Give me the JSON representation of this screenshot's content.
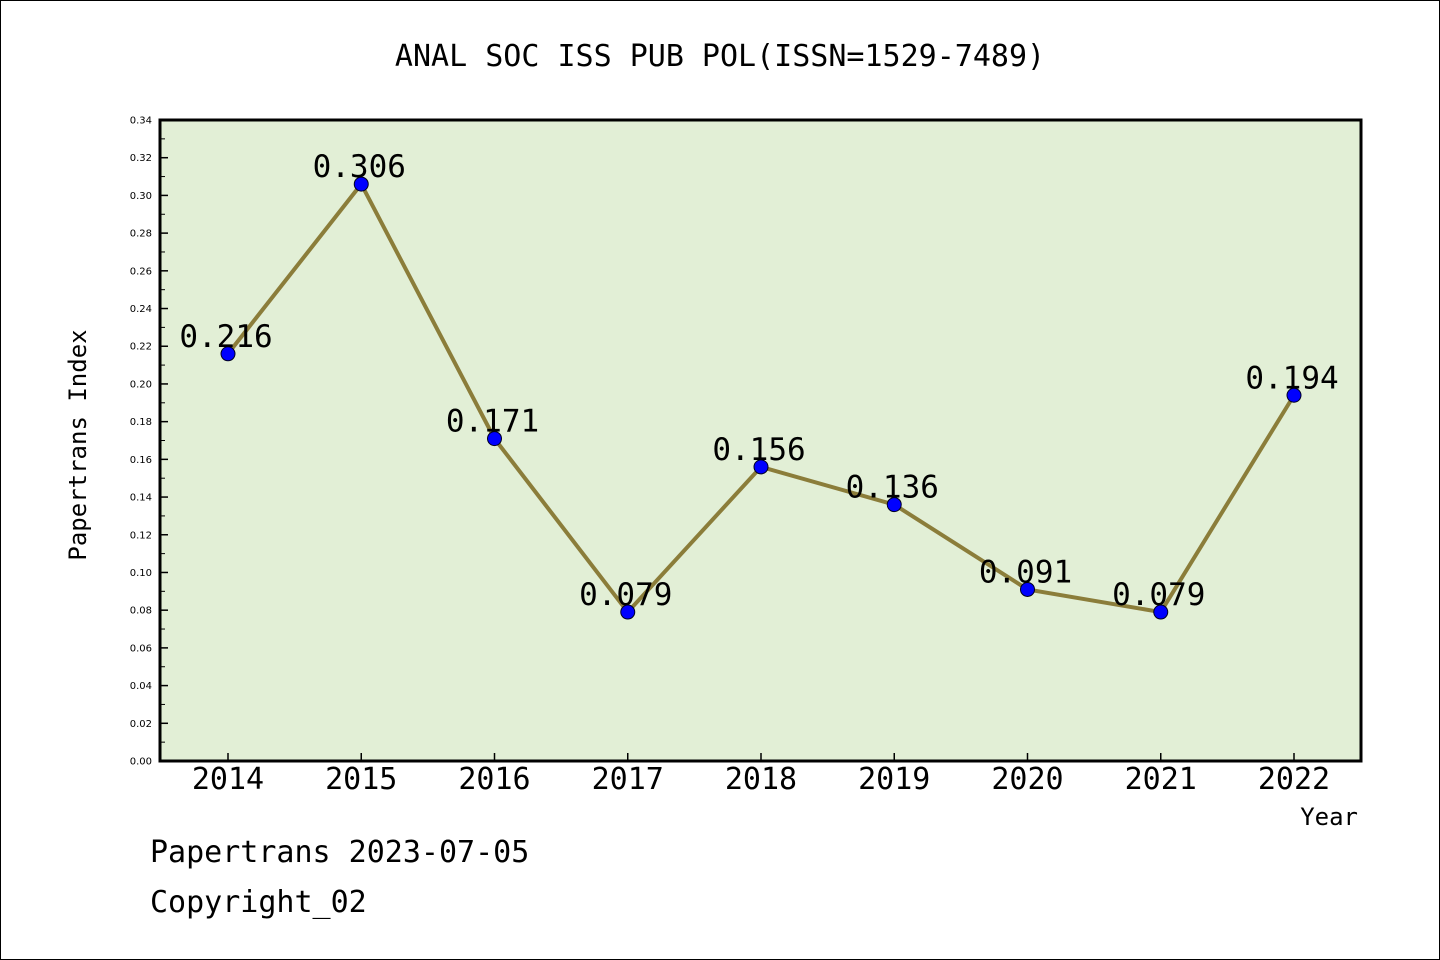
{
  "chart_data": {
    "type": "line",
    "title": "ANAL SOC ISS PUB POL(ISSN=1529-7489)",
    "xlabel": "Year",
    "ylabel": "Papertrans Index",
    "ylim": [
      0,
      0.34
    ],
    "ytick_step": 0.02,
    "categories": [
      "2014",
      "2015",
      "2016",
      "2017",
      "2018",
      "2019",
      "2020",
      "2021",
      "2022"
    ],
    "values": [
      0.216,
      0.306,
      0.171,
      0.079,
      0.156,
      0.136,
      0.091,
      0.079,
      0.194
    ],
    "data_labels": [
      "0.216",
      "0.306",
      "0.171",
      "0.079",
      "0.156",
      "0.136",
      "0.091",
      "0.079",
      "0.194"
    ],
    "grid": false,
    "colors": {
      "plot_background": "#e2efd6",
      "line": "#8b7d3a",
      "marker": "#0000ff"
    }
  },
  "footer": {
    "line1": "Papertrans 2023-07-05",
    "line2": "Copyright_02"
  }
}
